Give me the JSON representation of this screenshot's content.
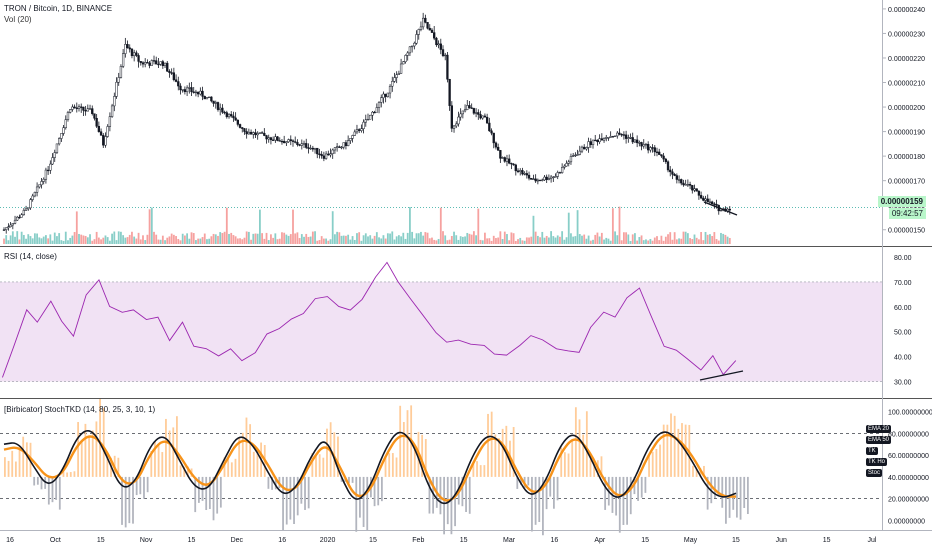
{
  "symbol": {
    "title": "TRON / Bitcoin, 1D, BINANCE",
    "vol_label": "Vol (20)",
    "last_price": "0.00000159",
    "countdown": "09:42:57"
  },
  "rsi_pane": {
    "title": "RSI (14, close)"
  },
  "stoch_pane": {
    "title": "[Birbicator] StochTKD (14, 80, 25, 3, 10, 1)",
    "tooltips": [
      "EMA 20",
      "EMA 50",
      "TK",
      "TK Ho",
      "Stoc"
    ]
  },
  "colors": {
    "up": "#26a69a",
    "down": "#ef5350",
    "candle": "#131722",
    "rsi_line": "#9c27b0",
    "rsi_band": "#e1bee7",
    "stoch_fast": "#131722",
    "stoch_slow": "#f7931a",
    "hist_up": "#ffcc99",
    "hist_down": "#b2b5be",
    "trendline": "#131722"
  },
  "chart_data": [
    {
      "type": "candlestick",
      "title": "TRON / Bitcoin, 1D, BINANCE",
      "y_ticks": [
        "0.00000240",
        "0.00000230",
        "0.00000220",
        "0.00000210",
        "0.00000200",
        "0.00000190",
        "0.00000180",
        "0.00000170",
        "0.00000160",
        "0.00000150"
      ],
      "ylim": [
        1.45e-06,
        2.42e-06
      ],
      "x_ticks": [
        "16",
        "Oct",
        "15",
        "Nov",
        "15",
        "Dec",
        "16",
        "2020",
        "15",
        "Feb",
        "15",
        "Mar",
        "16",
        "Apr",
        "15",
        "May",
        "15",
        "Jun",
        "15",
        "Jul"
      ],
      "close_path": [
        [
          0,
          1.5e-06
        ],
        [
          10,
          1.58e-06
        ],
        [
          20,
          1.75e-06
        ],
        [
          30,
          2e-06
        ],
        [
          40,
          1.98e-06
        ],
        [
          45,
          1.85e-06
        ],
        [
          55,
          2.25e-06
        ],
        [
          62,
          2.18e-06
        ],
        [
          72,
          2.18e-06
        ],
        [
          80,
          2.08e-06
        ],
        [
          90,
          2.05e-06
        ],
        [
          100,
          1.98e-06
        ],
        [
          110,
          1.9e-06
        ],
        [
          118,
          1.88e-06
        ],
        [
          128,
          1.86e-06
        ],
        [
          138,
          1.84e-06
        ],
        [
          145,
          1.8e-06
        ],
        [
          155,
          1.85e-06
        ],
        [
          165,
          1.95e-06
        ],
        [
          175,
          2.08e-06
        ],
        [
          185,
          2.25e-06
        ],
        [
          190,
          2.35e-06
        ],
        [
          195,
          2.28e-06
        ],
        [
          200,
          2.2e-06
        ],
        [
          203,
          1.92e-06
        ],
        [
          210,
          2e-06
        ],
        [
          218,
          1.95e-06
        ],
        [
          225,
          1.8e-06
        ],
        [
          232,
          1.75e-06
        ],
        [
          240,
          1.7e-06
        ],
        [
          250,
          1.72e-06
        ],
        [
          258,
          1.8e-06
        ],
        [
          265,
          1.85e-06
        ],
        [
          272,
          1.88e-06
        ],
        [
          280,
          1.89e-06
        ],
        [
          288,
          1.85e-06
        ],
        [
          296,
          1.82e-06
        ],
        [
          305,
          1.7e-06
        ],
        [
          310,
          1.68e-06
        ],
        [
          318,
          1.62e-06
        ],
        [
          325,
          1.58e-06
        ],
        [
          330,
          1.59e-06
        ]
      ],
      "volume_note": "Vol (20)",
      "last_price": "0.00000159",
      "trendline": "declining support line under the latest lows"
    },
    {
      "type": "line",
      "title": "RSI (14, close)",
      "y_ticks": [
        "80.00",
        "70.00",
        "60.00",
        "50.00",
        "40.00",
        "30.00"
      ],
      "ylim": [
        25,
        82
      ],
      "band": [
        30,
        70
      ],
      "series": [
        {
          "values": [
            32,
            45,
            58,
            52,
            62,
            55,
            50,
            66,
            70,
            62,
            58,
            60,
            56,
            55,
            48,
            52,
            45,
            42,
            40,
            43,
            38,
            42,
            48,
            50,
            54,
            58,
            62,
            66,
            60,
            57,
            63,
            71,
            78,
            70,
            64,
            56,
            50,
            46,
            48,
            45,
            44,
            43,
            42,
            46,
            48,
            46,
            44,
            43,
            42,
            52,
            58,
            55,
            62,
            68,
            55,
            46,
            43,
            40,
            36,
            39,
            34,
            38
          ]
        }
      ]
    },
    {
      "type": "line",
      "title": "[Birbicator] StochTKD (14, 80, 25, 3, 10, 1)",
      "y_ticks": [
        "100.00000000",
        "80.00000000",
        "60.00000000",
        "40.00000000",
        "20.00000000",
        "0.00000000"
      ],
      "ylim": [
        -5,
        105
      ],
      "reference_lines": [
        80,
        20
      ],
      "series": [
        {
          "values": [
            70,
            72,
            50,
            30,
            45,
            78,
            85,
            60,
            28,
            35,
            70,
            80,
            55,
            30,
            28,
            55,
            80,
            70,
            45,
            22,
            30,
            60,
            78,
            40,
            15,
            30,
            65,
            85,
            70,
            30,
            12,
            25,
            60,
            80,
            72,
            40,
            20,
            35,
            70,
            82,
            60,
            30,
            18,
            35,
            68,
            84,
            75,
            55,
            30,
            20,
            25
          ]
        },
        {
          "values": [
            65,
            68,
            55,
            38,
            42,
            70,
            80,
            65,
            35,
            33,
            62,
            76,
            60,
            38,
            30,
            50,
            74,
            72,
            52,
            28,
            28,
            55,
            72,
            48,
            20,
            26,
            58,
            80,
            74,
            38,
            16,
            22,
            52,
            76,
            74,
            46,
            24,
            30,
            62,
            78,
            64,
            36,
            20,
            30,
            60,
            80,
            76,
            60,
            36,
            22,
            22
          ]
        }
      ],
      "histogram": [
        20,
        35,
        -10,
        -30,
        5,
        45,
        60,
        20,
        -40,
        -20,
        30,
        50,
        10,
        -30,
        -35,
        15,
        50,
        30,
        -10,
        -45,
        -30,
        20,
        45,
        -5,
        -50,
        -25,
        25,
        55,
        35,
        -30,
        -55,
        -35,
        15,
        50,
        40,
        -10,
        -45,
        -25,
        30,
        55,
        20,
        -30,
        -45,
        -20,
        25,
        55,
        45,
        10,
        -25,
        -40,
        -35
      ]
    }
  ]
}
